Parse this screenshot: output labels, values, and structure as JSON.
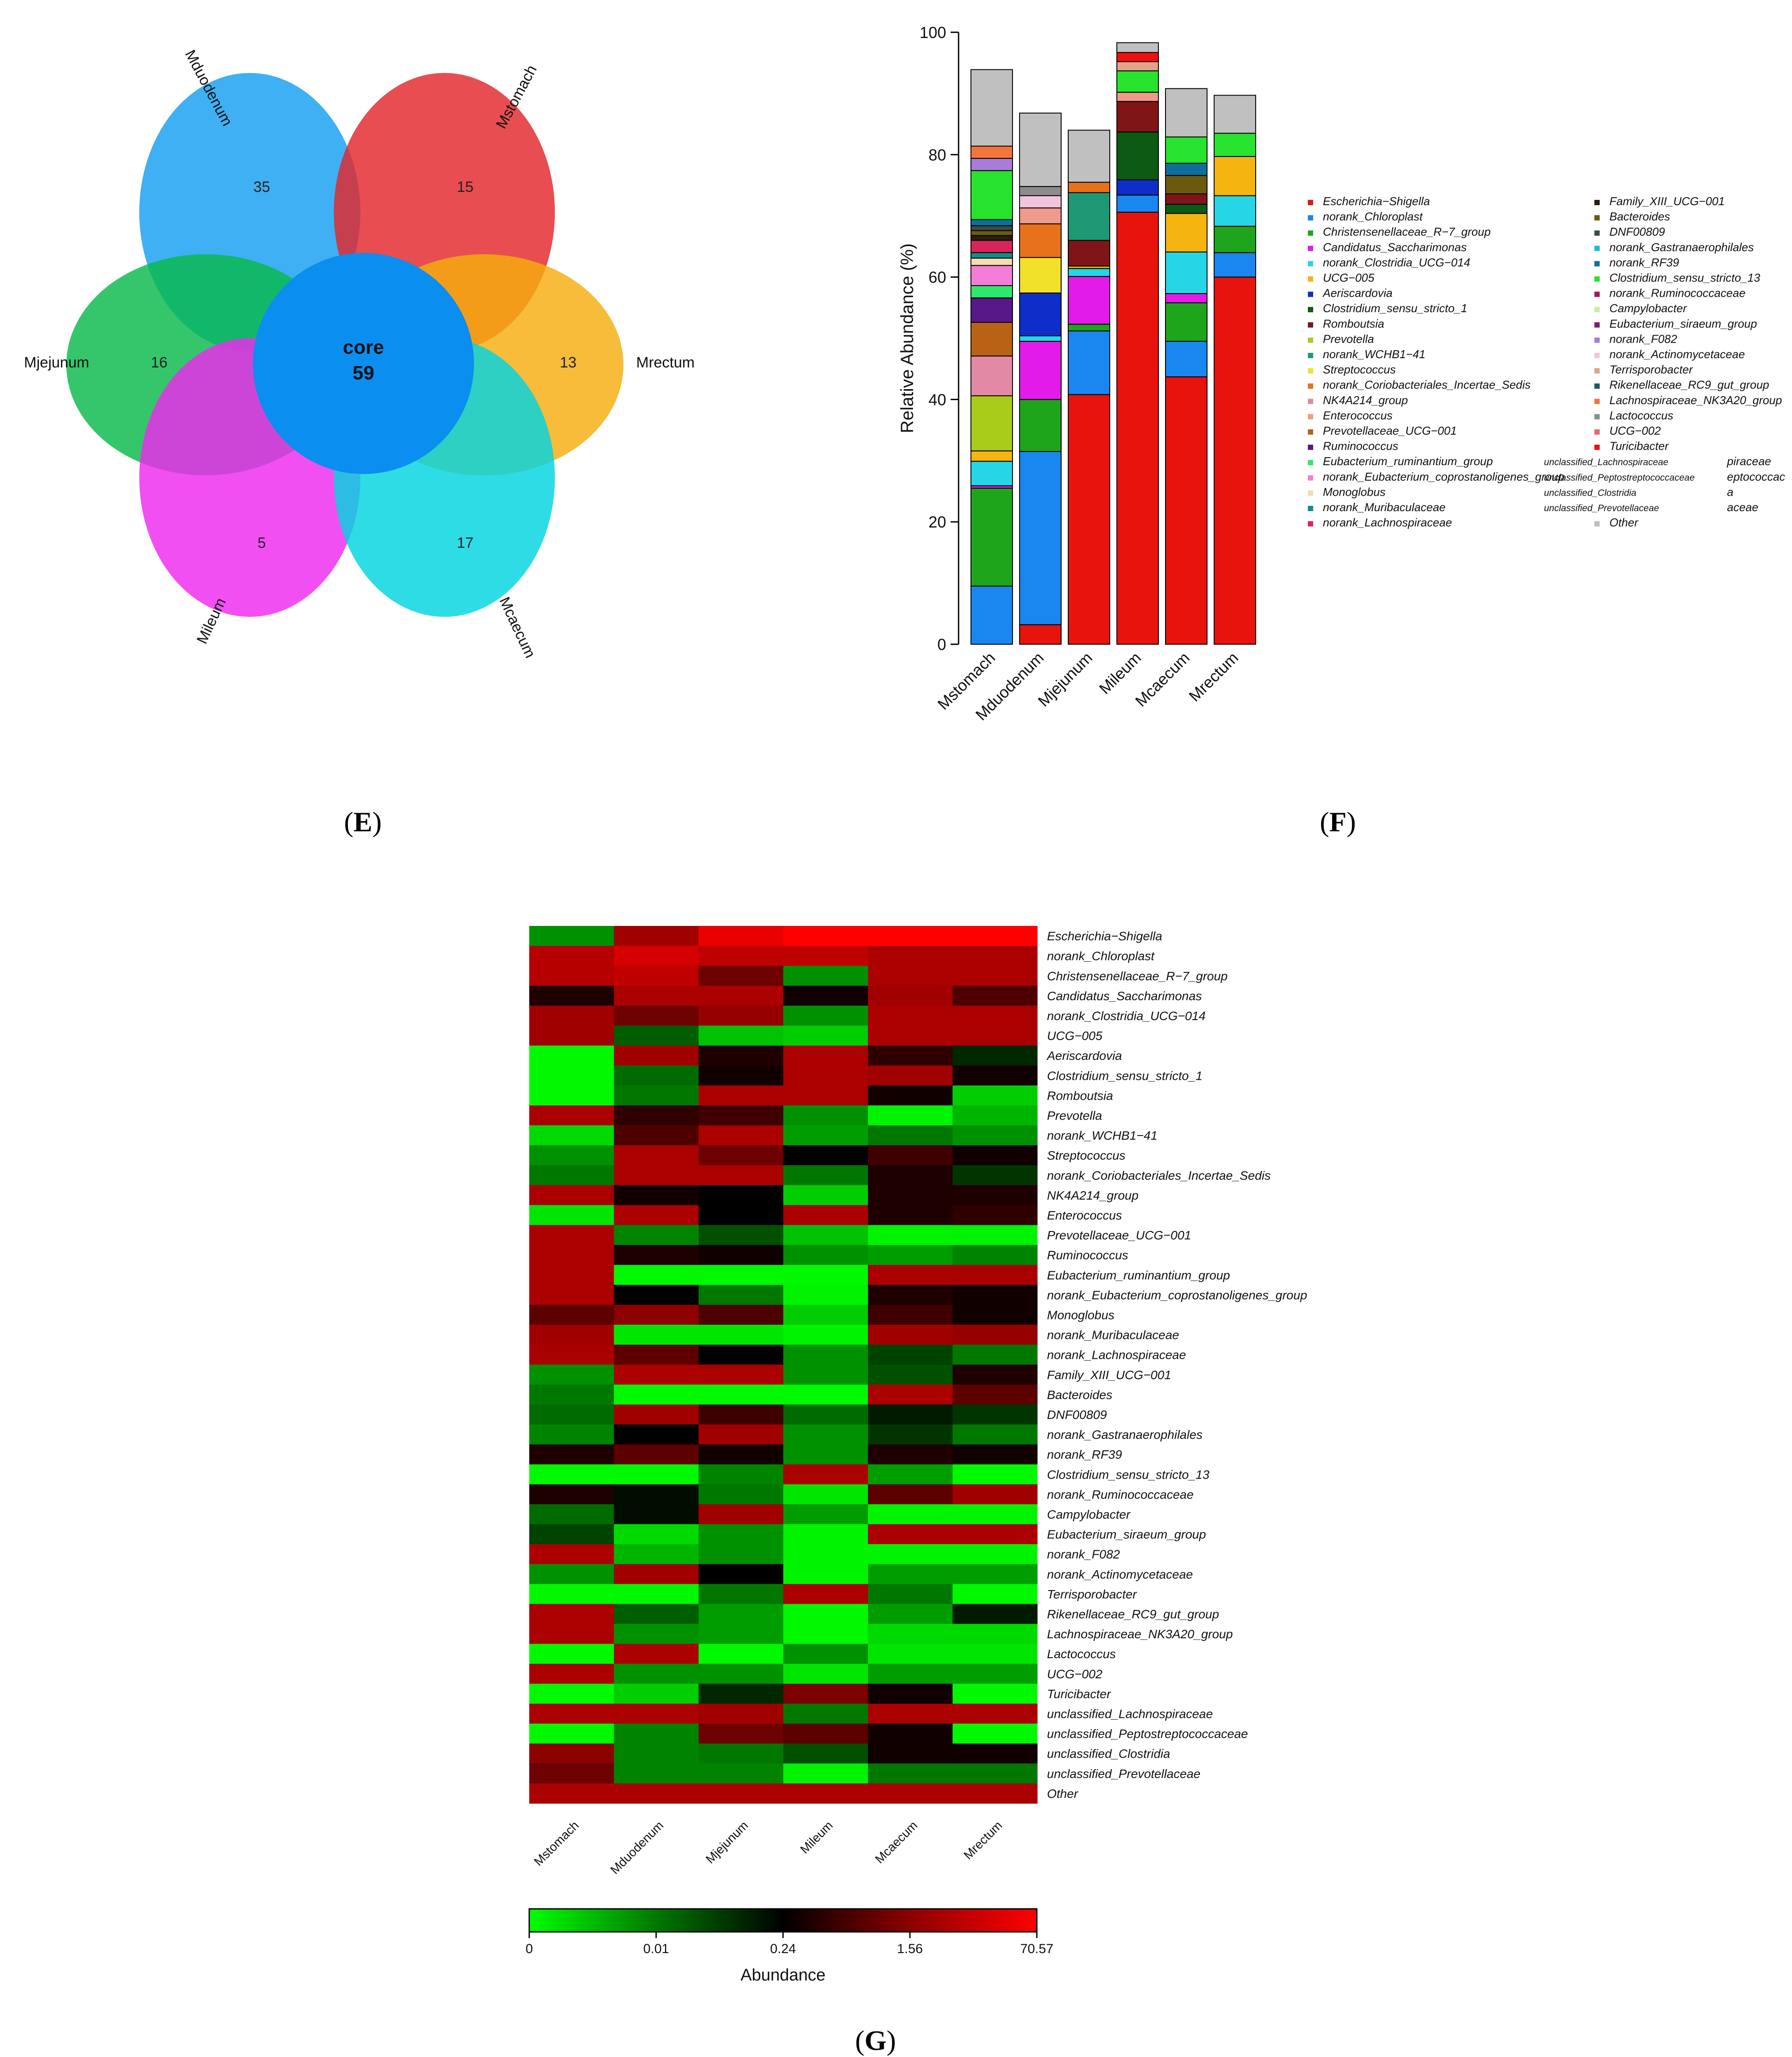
{
  "panels": {
    "e_label": "E",
    "f_label": "F",
    "g_label": "G"
  },
  "colors": {
    "Mstomach": "#e3262b",
    "Mduodenum": "#139ff0",
    "Mrectum": "#f5ad0d",
    "Mcaecum": "#00d4e1",
    "Mileum": "#ef28ef",
    "Mjejunum": "#08b94c",
    "core": "#0a8ef0"
  },
  "chart_data": [
    {
      "type": "venn",
      "sets": [
        {
          "name": "Mstomach",
          "unique": 15
        },
        {
          "name": "Mduodenum",
          "unique": 35
        },
        {
          "name": "Mjejunum",
          "unique": 16
        },
        {
          "name": "Mileum",
          "unique": 5
        },
        {
          "name": "Mcaecum",
          "unique": 17
        },
        {
          "name": "Mrectum",
          "unique": 13
        }
      ],
      "core_label": "core",
      "core_value": 59
    },
    {
      "type": "bar",
      "stacked": true,
      "ylabel": "Relative Abundance (%)",
      "ylim": [
        0,
        100
      ],
      "yticks": [
        0,
        20,
        40,
        60,
        80,
        100
      ],
      "categories": [
        "Mstomach",
        "Mduodenum",
        "Mjejunum",
        "Mileum",
        "Mcaecum",
        "Mrectum"
      ],
      "series": [
        {
          "name": "Escherichia−Shigella",
          "color": "#e8130d",
          "values": [
            0,
            3.2,
            40.8,
            70.6,
            43.7,
            60.0
          ]
        },
        {
          "name": "norank_Chloroplast",
          "color": "#1a86f0",
          "values": [
            9.5,
            28.3,
            10.4,
            2.8,
            5.8,
            4.0
          ]
        },
        {
          "name": "Christensenellaceae_R−7_group",
          "color": "#1fa51c",
          "values": [
            16.0,
            8.5,
            1.1,
            0,
            6.3,
            4.3
          ]
        },
        {
          "name": "Candidatus_Saccharimonas",
          "color": "#e31bea",
          "values": [
            0.4,
            9.5,
            7.8,
            0,
            1.5,
            0
          ]
        },
        {
          "name": "norank_Clostridia_UCG−014",
          "color": "#26d6e6",
          "values": [
            4.0,
            0.9,
            1.3,
            0,
            6.8,
            5.0
          ]
        },
        {
          "name": "UCG−005",
          "color": "#f5b40f",
          "values": [
            1.7,
            0,
            0.4,
            0,
            6.3,
            6.4
          ]
        },
        {
          "name": "Aeriscardovia",
          "color": "#0f2dc8",
          "values": [
            0,
            7.0,
            0,
            2.5,
            0,
            0
          ]
        },
        {
          "name": "Clostridium_sensu_stricto_1",
          "color": "#0d5a12",
          "values": [
            0,
            0,
            0,
            7.8,
            1.5,
            0
          ]
        },
        {
          "name": "Romboutsia",
          "color": "#801518",
          "values": [
            0,
            0,
            4.2,
            5.0,
            1.7,
            0
          ]
        },
        {
          "name": "Prevotella",
          "color": "#a9cc1a",
          "values": [
            9.0,
            0,
            0,
            0,
            0,
            0
          ]
        },
        {
          "name": "norank_WCHB1−41",
          "color": "#1d9a75",
          "values": [
            0,
            0,
            7.8,
            0,
            0,
            0
          ]
        },
        {
          "name": "Streptococcus",
          "color": "#f2e12a",
          "values": [
            0,
            5.8,
            0,
            0,
            0,
            0
          ]
        },
        {
          "name": "norank_Coriobacteriales_Incertae_Sedis",
          "color": "#e8711b",
          "values": [
            0,
            5.5,
            1.7,
            0,
            0,
            0
          ]
        },
        {
          "name": "NK4A214_group",
          "color": "#e28aa5",
          "values": [
            6.5,
            0,
            0,
            0,
            0,
            0
          ]
        },
        {
          "name": "Enterococcus",
          "color": "#f09a8c",
          "values": [
            0,
            2.6,
            0,
            1.5,
            0,
            0
          ]
        },
        {
          "name": "Prevotellaceae_UCG−001",
          "color": "#b96114",
          "values": [
            5.5,
            0,
            0,
            0,
            0,
            0
          ]
        },
        {
          "name": "Ruminococcus",
          "color": "#581888",
          "values": [
            4.0,
            0,
            0,
            0,
            0,
            0
          ]
        },
        {
          "name": "Eubacterium_ruminantium_group",
          "color": "#2ee86c",
          "values": [
            2.0,
            0,
            0,
            0,
            0,
            0
          ]
        },
        {
          "name": "norank_Eubacterium_coprostanoligenes_group",
          "color": "#f27ed8",
          "values": [
            3.3,
            0,
            0,
            0,
            0,
            0
          ]
        },
        {
          "name": "Monoglobus",
          "color": "#f7dcb0",
          "values": [
            1.2,
            0,
            0,
            0,
            0,
            0
          ]
        },
        {
          "name": "norank_Muribaculaceae",
          "color": "#128d8a",
          "values": [
            0.9,
            0,
            0,
            0,
            0,
            0
          ]
        },
        {
          "name": "norank_Lachnospiraceae",
          "color": "#d9245a",
          "values": [
            2.0,
            0,
            0,
            0,
            0,
            0
          ]
        },
        {
          "name": "Family_XIII_UCG−001",
          "color": "#2a1e0f",
          "values": [
            0.8,
            0,
            0,
            0,
            0,
            0
          ]
        },
        {
          "name": "Bacteroides",
          "color": "#6b5a0e",
          "values": [
            0.8,
            0,
            0,
            0,
            3.0,
            0
          ]
        },
        {
          "name": "DNF00809",
          "color": "#3b4a4a",
          "values": [
            0.8,
            0,
            0,
            0,
            0,
            0
          ]
        },
        {
          "name": "norank_Gastranaerophilales",
          "color": "#1eb8e0",
          "values": [
            0,
            0,
            0,
            0,
            0,
            0
          ]
        },
        {
          "name": "norank_RF39",
          "color": "#0f6f9c",
          "values": [
            1.0,
            0,
            0,
            0,
            2.0,
            0
          ]
        },
        {
          "name": "Clostridium_sensu_stricto_13",
          "color": "#27e32d",
          "values": [
            8.0,
            0,
            0,
            3.5,
            4.3,
            3.8
          ]
        },
        {
          "name": "norank_Ruminococcaceae",
          "color": "#a5155c",
          "values": [
            0,
            0,
            0,
            0,
            0,
            0
          ]
        },
        {
          "name": "Campylobacter",
          "color": "#c7f0a7",
          "values": [
            0,
            0,
            0,
            0,
            0,
            0
          ]
        },
        {
          "name": "Eubacterium_siraeum_group",
          "color": "#861a6a",
          "values": [
            0,
            0,
            0,
            0,
            0,
            0
          ]
        },
        {
          "name": "norank_F082",
          "color": "#a97cda",
          "values": [
            2.0,
            0,
            0,
            0,
            0,
            0
          ]
        },
        {
          "name": "norank_Actinomycetaceae",
          "color": "#f0c4da",
          "values": [
            0,
            2.0,
            0,
            0,
            0,
            0
          ]
        },
        {
          "name": "Terrisporobacter",
          "color": "#e6a08c",
          "values": [
            0,
            0,
            0,
            1.5,
            0,
            0
          ]
        },
        {
          "name": "Rikenellaceae_RC9_gut_group",
          "color": "#24556b",
          "values": [
            0,
            0,
            0,
            0,
            0,
            0
          ]
        },
        {
          "name": "Lachnospiraceae_NK3A20_group",
          "color": "#f2763b",
          "values": [
            2.0,
            0,
            0,
            0,
            0,
            0
          ]
        },
        {
          "name": "Lactococcus",
          "color": "#8c8c8c",
          "values": [
            0,
            1.5,
            0,
            0,
            0,
            0
          ]
        },
        {
          "name": "UCG−002",
          "color": "#e86a6a",
          "values": [
            0,
            0,
            0,
            0,
            0,
            0
          ]
        },
        {
          "name": "Turicibacter",
          "color": "#f01010",
          "values": [
            0,
            0,
            0,
            1.5,
            0,
            0
          ]
        },
        {
          "name": "unclassified_Lachnospiraceae",
          "color": "#7a2a10",
          "values": [
            0,
            0,
            0,
            0,
            0,
            0
          ]
        },
        {
          "name": "unclassified_Peptostreptococcaceae",
          "color": "#c8b68a",
          "values": [
            0,
            0,
            0,
            0,
            0,
            0
          ]
        },
        {
          "name": "unclassified_Clostridia",
          "color": "#4a4a8a",
          "values": [
            0,
            0,
            0,
            0,
            0,
            0
          ]
        },
        {
          "name": "unclassified_Prevotellaceae",
          "color": "#a0a0a0",
          "values": [
            0,
            0,
            0,
            0,
            0,
            0
          ]
        },
        {
          "name": "Other",
          "color": "#c0c0c0",
          "values": [
            12.5,
            12.0,
            8.5,
            1.6,
            7.9,
            6.2
          ]
        }
      ],
      "legend_truncated": [
        {
          "text": "piraceae"
        },
        {
          "text": "eptococcac"
        },
        {
          "text": "a"
        },
        {
          "text": "aceae"
        }
      ],
      "legend_group_overlap": "gut_group",
      "legend_group_overlap2": "\\A20_grou"
    },
    {
      "type": "heatmap",
      "columns": [
        "Mstomach",
        "Mduodenum",
        "Mjejunum",
        "Mileum",
        "Mcaecum",
        "Mrectum"
      ],
      "rows": [
        "Escherichia−Shigella",
        "norank_Chloroplast",
        "Christensenellaceae_R−7_group",
        "Candidatus_Saccharimonas",
        "norank_Clostridia_UCG−014",
        "UCG−005",
        "Aeriscardovia",
        "Clostridium_sensu_stricto_1",
        "Romboutsia",
        "Prevotella",
        "norank_WCHB1−41",
        "Streptococcus",
        "norank_Coriobacteriales_Incertae_Sedis",
        "NK4A214_group",
        "Enterococcus",
        "Prevotellaceae_UCG−001",
        "Ruminococcus",
        "Eubacterium_ruminantium_group",
        "norank_Eubacterium_coprostanoligenes_group",
        "Monoglobus",
        "norank_Muribaculaceae",
        "norank_Lachnospiraceae",
        "Family_XIII_UCG−001",
        "Bacteroides",
        "DNF00809",
        "norank_Gastranaerophilales",
        "norank_RF39",
        "Clostridium_sensu_stricto_13",
        "norank_Ruminococcaceae",
        "Campylobacter",
        "Eubacterium_siraeum_group",
        "norank_F082",
        "norank_Actinomycetaceae",
        "Terrisporobacter",
        "Rikenellaceae_RC9_gut_group",
        "Lachnospiraceae_NK3A20_group",
        "Lactococcus",
        "UCG−002",
        "Turicibacter",
        "unclassified_Lachnospiraceae",
        "unclassified_Peptostreptococcaceae",
        "unclassified_Clostridia",
        "unclassified_Prevotellaceae",
        "Other"
      ],
      "values": [
        [
          -0.55,
          0.55,
          0.9,
          1.0,
          1.0,
          1.0
        ],
        [
          0.65,
          0.8,
          0.7,
          0.7,
          0.6,
          0.6
        ],
        [
          0.65,
          0.7,
          0.35,
          -0.55,
          0.6,
          0.6
        ],
        [
          0.1,
          0.6,
          0.6,
          0.05,
          0.55,
          0.25
        ],
        [
          0.55,
          0.35,
          0.5,
          -0.55,
          0.6,
          0.6
        ],
        [
          0.55,
          -0.35,
          -0.75,
          -0.8,
          0.6,
          0.6
        ],
        [
          -0.97,
          0.55,
          0.1,
          0.6,
          0.15,
          -0.15
        ],
        [
          -0.97,
          -0.4,
          0.05,
          0.6,
          0.55,
          0.05
        ],
        [
          -0.97,
          -0.45,
          0.6,
          0.6,
          0.05,
          -0.8
        ],
        [
          0.6,
          0.15,
          0.2,
          -0.55,
          -0.95,
          -0.7
        ],
        [
          -0.85,
          0.25,
          0.6,
          -0.6,
          -0.45,
          -0.55
        ],
        [
          -0.55,
          0.6,
          0.35,
          0.0,
          0.2,
          0.05
        ],
        [
          -0.45,
          0.6,
          0.6,
          -0.45,
          0.1,
          -0.2
        ],
        [
          0.6,
          0.05,
          0.0,
          -0.8,
          0.1,
          0.1
        ],
        [
          -0.9,
          0.6,
          0.0,
          0.6,
          0.1,
          0.15
        ],
        [
          0.6,
          -0.5,
          -0.3,
          -0.75,
          -0.95,
          -0.95
        ],
        [
          0.6,
          0.1,
          0.05,
          -0.55,
          -0.6,
          -0.5
        ],
        [
          0.6,
          -0.97,
          -0.97,
          -0.97,
          0.6,
          0.6
        ],
        [
          0.6,
          0.0,
          -0.45,
          -0.95,
          0.1,
          0.05
        ],
        [
          0.3,
          0.45,
          0.25,
          -0.8,
          0.2,
          0.05
        ],
        [
          0.55,
          -0.9,
          -0.9,
          -0.95,
          0.55,
          0.5
        ],
        [
          0.6,
          0.3,
          0.0,
          -0.55,
          -0.25,
          -0.45
        ],
        [
          -0.55,
          0.6,
          0.6,
          -0.55,
          -0.3,
          0.1
        ],
        [
          -0.45,
          -0.97,
          -0.97,
          -0.97,
          0.6,
          0.3
        ],
        [
          -0.4,
          0.55,
          0.2,
          -0.4,
          -0.1,
          -0.2
        ],
        [
          -0.5,
          0.0,
          0.55,
          -0.55,
          -0.2,
          -0.45
        ],
        [
          0.1,
          0.3,
          0.05,
          -0.55,
          0.1,
          0.05
        ],
        [
          -0.97,
          -0.97,
          -0.5,
          0.6,
          -0.6,
          -0.97
        ],
        [
          0.1,
          -0.05,
          -0.45,
          -0.9,
          0.3,
          0.55
        ],
        [
          -0.4,
          -0.05,
          0.55,
          -0.6,
          -0.95,
          -0.95
        ],
        [
          -0.25,
          -0.85,
          -0.55,
          -0.95,
          0.6,
          0.6
        ],
        [
          0.6,
          -0.7,
          -0.55,
          -0.95,
          -0.95,
          -0.95
        ],
        [
          -0.55,
          0.55,
          0.0,
          -0.95,
          -0.6,
          -0.6
        ],
        [
          -0.97,
          -0.97,
          -0.45,
          0.6,
          -0.45,
          -0.97
        ],
        [
          0.6,
          -0.35,
          -0.6,
          -0.97,
          -0.6,
          -0.1
        ],
        [
          0.6,
          -0.55,
          -0.6,
          -0.97,
          -0.85,
          -0.85
        ],
        [
          -0.97,
          0.6,
          -0.97,
          -0.55,
          -0.9,
          -0.9
        ],
        [
          0.6,
          -0.55,
          -0.55,
          -0.9,
          -0.6,
          -0.6
        ],
        [
          -0.97,
          -0.8,
          -0.15,
          0.4,
          0.05,
          -0.97
        ],
        [
          0.6,
          0.6,
          0.55,
          -0.45,
          0.6,
          0.6
        ],
        [
          -0.97,
          -0.5,
          0.35,
          0.3,
          0.05,
          -0.97
        ],
        [
          0.45,
          -0.5,
          -0.45,
          -0.3,
          0.05,
          0.05
        ],
        [
          0.35,
          -0.5,
          -0.5,
          -0.95,
          -0.45,
          -0.45
        ],
        [
          0.6,
          0.6,
          0.6,
          0.6,
          0.6,
          0.6
        ]
      ],
      "colorbar": {
        "ticks": [
          "0",
          "0.01",
          "0.24",
          "1.56",
          "70.57"
        ],
        "label": "Abundance"
      }
    }
  ]
}
